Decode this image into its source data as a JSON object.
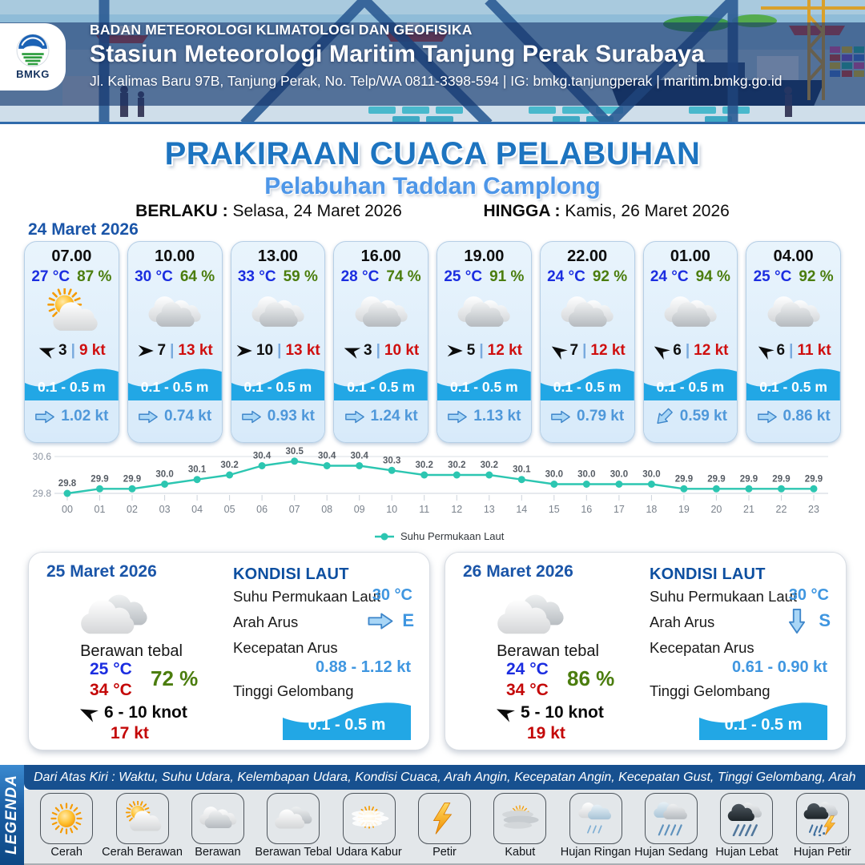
{
  "header": {
    "org": "BADAN METEOROLOGI KLIMATOLOGI DAN GEOFISIKA",
    "station": "Stasiun Meteorologi Maritim Tanjung Perak Surabaya",
    "address": "Jl. Kalimas Baru 97B, Tanjung Perak, No. Telp/WA 0811-3398-594 | IG: bmkg.tanjungperak | maritim.bmkg.go.id",
    "logo_text": "BMKG"
  },
  "title": {
    "main": "PRAKIRAAN CUACA PELABUHAN",
    "subtitle": "Pelabuhan Taddan Camplong",
    "berlaku_label": "BERLAKU :",
    "berlaku_value": "Selasa, 24 Maret 2026",
    "hingga_label": "HINGGA :",
    "hingga_value": "Kamis, 26 Maret 2026"
  },
  "forecast_date": "24 Maret 2026",
  "forecast_cards": [
    {
      "time": "07.00",
      "temp": "27 °C",
      "humidity": "87 %",
      "icon": "cerah-berawan",
      "wind_dir_deg": 200,
      "wind_val": "3",
      "wind_gust": "9 kt",
      "wave": "0.1 - 0.5 m",
      "current_dir_deg": 0,
      "current": "1.02 kt"
    },
    {
      "time": "10.00",
      "temp": "30 °C",
      "humidity": "64 %",
      "icon": "berawan",
      "wind_dir_deg": 0,
      "wind_val": "7",
      "wind_gust": "13 kt",
      "wave": "0.1 - 0.5 m",
      "current_dir_deg": 0,
      "current": "0.74 kt"
    },
    {
      "time": "13.00",
      "temp": "33 °C",
      "humidity": "59 %",
      "icon": "berawan",
      "wind_dir_deg": 0,
      "wind_val": "10",
      "wind_gust": "13 kt",
      "wave": "0.1 - 0.5 m",
      "current_dir_deg": 0,
      "current": "0.93 kt"
    },
    {
      "time": "16.00",
      "temp": "28 °C",
      "humidity": "74 %",
      "icon": "berawan",
      "wind_dir_deg": 200,
      "wind_val": "3",
      "wind_gust": "10 kt",
      "wave": "0.1 - 0.5 m",
      "current_dir_deg": 0,
      "current": "1.24 kt"
    },
    {
      "time": "19.00",
      "temp": "25 °C",
      "humidity": "91 %",
      "icon": "berawan",
      "wind_dir_deg": 0,
      "wind_val": "5",
      "wind_gust": "12 kt",
      "wave": "0.1 - 0.5 m",
      "current_dir_deg": 0,
      "current": "1.13 kt"
    },
    {
      "time": "22.00",
      "temp": "24 °C",
      "humidity": "92 %",
      "icon": "berawan",
      "wind_dir_deg": 214,
      "wind_val": "7",
      "wind_gust": "12 kt",
      "wave": "0.1 - 0.5 m",
      "current_dir_deg": 0,
      "current": "0.79 kt"
    },
    {
      "time": "01.00",
      "temp": "24 °C",
      "humidity": "94 %",
      "icon": "berawan",
      "wind_dir_deg": 214,
      "wind_val": "6",
      "wind_gust": "12 kt",
      "wave": "0.1 - 0.5 m",
      "current_dir_deg": 135,
      "current": "0.59 kt"
    },
    {
      "time": "04.00",
      "temp": "25 °C",
      "humidity": "92 %",
      "icon": "berawan",
      "wind_dir_deg": 214,
      "wind_val": "6",
      "wind_gust": "11 kt",
      "wave": "0.1 - 0.5 m",
      "current_dir_deg": 0,
      "current": "0.86 kt"
    }
  ],
  "chart_data": {
    "type": "line",
    "x": [
      "00",
      "01",
      "02",
      "03",
      "04",
      "05",
      "06",
      "07",
      "08",
      "09",
      "10",
      "11",
      "12",
      "13",
      "14",
      "15",
      "16",
      "17",
      "18",
      "19",
      "20",
      "21",
      "22",
      "23"
    ],
    "series": [
      {
        "name": "Suhu Permukaan Laut",
        "values": [
          29.8,
          29.9,
          29.9,
          30.0,
          30.1,
          30.2,
          30.4,
          30.5,
          30.4,
          30.4,
          30.3,
          30.2,
          30.2,
          30.2,
          30.1,
          30.0,
          30.0,
          30.0,
          30.0,
          29.9,
          29.9,
          29.9,
          29.9,
          29.9
        ]
      }
    ],
    "ylim": [
      29.8,
      30.6
    ],
    "yticks": [
      29.8,
      30.6
    ],
    "line_color": "#2cc6b1",
    "grid": true,
    "legend_position": "bottom"
  },
  "day_panels": [
    {
      "date": "25 Maret 2026",
      "icon": "berawan-tebal",
      "condition": "Berawan tebal",
      "temp_min": "25 °C",
      "temp_max": "34 °C",
      "humidity": "72 %",
      "wind_dir_deg": 205,
      "wind_range": "6 - 10 knot",
      "gust": "17 kt",
      "sea": {
        "title": "KONDISI LAUT",
        "sst_label": "Suhu Permukaan Laut",
        "sst": "30 °C",
        "current_dir_label": "Arah Arus",
        "current_dir": "E",
        "current_dir_deg": 0,
        "current_speed_label": "Kecepatan Arus",
        "current_speed": "0.88 - 1.12 kt",
        "wave_label": "Tinggi Gelombang",
        "wave": "0.1 - 0.5 m"
      }
    },
    {
      "date": "26 Maret 2026",
      "icon": "berawan-tebal",
      "condition": "Berawan tebal",
      "temp_min": "24 °C",
      "temp_max": "34 °C",
      "humidity": "86 %",
      "wind_dir_deg": 205,
      "wind_range": "5 - 10 knot",
      "gust": "19 kt",
      "sea": {
        "title": "KONDISI LAUT",
        "sst_label": "Suhu Permukaan Laut",
        "sst": "30 °C",
        "current_dir_label": "Arah Arus",
        "current_dir": "S",
        "current_dir_deg": 90,
        "current_speed_label": "Kecepatan Arus",
        "current_speed": "0.61 - 0.90 kt",
        "wave_label": "Tinggi Gelombang",
        "wave": "0.1 - 0.5 m"
      }
    }
  ],
  "legend": {
    "bar_label": "LEGENDA",
    "description": "Dari Atas Kiri : Waktu, Suhu Udara, Kelembapan Udara, Kondisi Cuaca, Arah Angin, Kecepatan Angin, Kecepatan Gust, Tinggi Gelombang, Arah Arus, Kecepatan Arus",
    "items": [
      {
        "label": "Cerah",
        "icon": "cerah"
      },
      {
        "label": "Cerah Berawan",
        "icon": "cerah-berawan"
      },
      {
        "label": "Berawan",
        "icon": "berawan"
      },
      {
        "label": "Berawan Tebal",
        "icon": "berawan-tebal"
      },
      {
        "label": "Udara Kabur",
        "icon": "udara-kabur"
      },
      {
        "label": "Petir",
        "icon": "petir"
      },
      {
        "label": "Kabut",
        "icon": "kabut"
      },
      {
        "label": "Hujan Ringan",
        "icon": "hujan-ringan"
      },
      {
        "label": "Hujan Sedang",
        "icon": "hujan-sedang"
      },
      {
        "label": "Hujan Lebat",
        "icon": "hujan-lebat"
      },
      {
        "label": "Hujan Petir",
        "icon": "hujan-petir"
      }
    ]
  },
  "colors": {
    "accent_blue": "#1d74c0",
    "subtitle_blue": "#4d96e8",
    "temp_blue": "#1b2de0",
    "humidity_green": "#4b7d0e",
    "alert_red": "#cf0f0f",
    "wave_blue": "#22a7e5",
    "current_blue": "#4f98da",
    "heading_blue": "#1a55a8",
    "chart_teal": "#2cc6b1",
    "footer_navy": "#17508f"
  }
}
